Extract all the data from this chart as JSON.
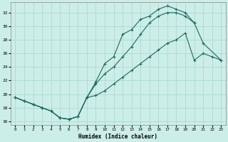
{
  "title": "",
  "xlabel": "Humidex (Indice chaleur)",
  "bg_color": "#cceee8",
  "line_color": "#1a6b5e",
  "grid_color": "#aad4cc",
  "xlim": [
    -0.5,
    23.5
  ],
  "ylim": [
    15.5,
    33.5
  ],
  "xticks": [
    0,
    1,
    2,
    3,
    4,
    5,
    6,
    7,
    8,
    9,
    10,
    11,
    12,
    13,
    14,
    15,
    16,
    17,
    18,
    19,
    20,
    21,
    22,
    23
  ],
  "yticks": [
    16,
    18,
    20,
    22,
    24,
    26,
    28,
    30,
    32
  ],
  "curve1_x": [
    0,
    1,
    2,
    3,
    4,
    5,
    6,
    7,
    8,
    9,
    10,
    11,
    12,
    13,
    14,
    15,
    16,
    17,
    18,
    19,
    20,
    21,
    23
  ],
  "curve1_y": [
    19.5,
    19.0,
    18.5,
    18.0,
    17.5,
    16.5,
    16.3,
    16.7,
    19.5,
    21.8,
    24.5,
    25.5,
    28.8,
    29.5,
    31.0,
    31.5,
    32.5,
    33.0,
    32.5,
    32.0,
    30.5,
    27.5,
    25.0
  ],
  "curve2_x": [
    0,
    1,
    2,
    3,
    4,
    5,
    6,
    7,
    8,
    9,
    10,
    11,
    12,
    13,
    14,
    15,
    16,
    17,
    18,
    19,
    20
  ],
  "curve2_y": [
    19.5,
    19.0,
    18.5,
    18.0,
    17.5,
    16.5,
    16.3,
    16.7,
    19.5,
    21.5,
    23.0,
    24.0,
    25.5,
    27.0,
    28.8,
    30.5,
    31.5,
    32.0,
    32.0,
    31.5,
    30.5
  ],
  "curve3_x": [
    0,
    1,
    2,
    3,
    4,
    5,
    6,
    7,
    8,
    9,
    10,
    11,
    12,
    13,
    14,
    15,
    16,
    17,
    18,
    19,
    20,
    21,
    22,
    23
  ],
  "curve3_y": [
    19.5,
    19.0,
    18.5,
    18.0,
    17.5,
    16.5,
    16.3,
    16.7,
    19.5,
    19.8,
    20.5,
    21.5,
    22.5,
    23.5,
    24.5,
    25.5,
    26.5,
    27.5,
    28.0,
    29.0,
    25.0,
    26.0,
    25.5,
    25.0
  ]
}
